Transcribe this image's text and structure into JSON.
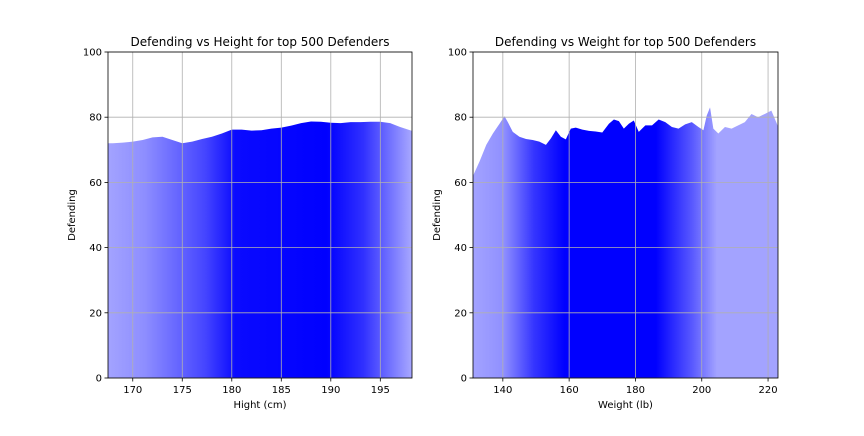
{
  "chart_data": [
    {
      "type": "area",
      "title": "Defending vs Height for top 500 Defenders",
      "xlabel": "Hight (cm)",
      "ylabel": "Defending",
      "xlim": [
        167.5,
        198.2
      ],
      "ylim": [
        0,
        100
      ],
      "xticks": [
        170,
        175,
        180,
        185,
        190,
        195
      ],
      "yticks": [
        0,
        20,
        40,
        60,
        80,
        100
      ],
      "grid": true,
      "fill_color": "#0000ff",
      "x": [
        167.5,
        168,
        169,
        170,
        171,
        172,
        173,
        174,
        175,
        176,
        177,
        178,
        179,
        180,
        181,
        182,
        183,
        184,
        185,
        186,
        187,
        188,
        189,
        190,
        191,
        192,
        193,
        194,
        195,
        196,
        197,
        198.2
      ],
      "y": [
        72.0,
        72.0,
        72.2,
        72.5,
        73.0,
        73.8,
        74.0,
        73.0,
        72.0,
        72.5,
        73.3,
        74.0,
        75.0,
        76.2,
        76.2,
        75.9,
        76.0,
        76.5,
        76.8,
        77.4,
        78.2,
        78.7,
        78.6,
        78.3,
        78.2,
        78.5,
        78.5,
        78.6,
        78.6,
        78.2,
        77.0,
        75.8
      ]
    },
    {
      "type": "area",
      "title": "Defending vs Weight for top 500 Defenders",
      "xlabel": "Weight (lb)",
      "ylabel": "Defending",
      "xlim": [
        131,
        223
      ],
      "ylim": [
        0,
        100
      ],
      "xticks": [
        140,
        160,
        180,
        200,
        220
      ],
      "yticks": [
        0,
        20,
        40,
        60,
        80,
        100
      ],
      "grid": true,
      "fill_color": "#0000ff",
      "x": [
        131,
        133,
        135,
        137,
        139,
        140.5,
        141.5,
        143,
        145,
        147,
        149,
        151,
        153,
        154.5,
        156,
        157.5,
        159,
        160.5,
        162,
        164,
        166,
        168,
        170,
        172,
        173.5,
        175,
        176.5,
        178,
        179.5,
        181,
        183,
        185,
        187,
        189,
        191,
        193,
        195,
        197,
        199,
        200.5,
        201.5,
        202.5,
        203.5,
        205,
        207,
        209,
        211,
        213,
        215,
        217,
        219,
        221,
        223
      ],
      "y": [
        62.0,
        66.5,
        71.5,
        75.0,
        78.0,
        80.3,
        78.5,
        75.5,
        74.0,
        73.3,
        73.0,
        72.5,
        71.5,
        73.5,
        76.0,
        74.0,
        73.2,
        76.5,
        76.8,
        76.2,
        75.8,
        75.6,
        75.3,
        78.0,
        79.3,
        78.8,
        76.5,
        78.0,
        79.0,
        75.5,
        77.5,
        77.5,
        79.3,
        78.5,
        77.0,
        76.5,
        77.8,
        78.5,
        77.0,
        76.0,
        80.5,
        83.0,
        76.5,
        75.0,
        77.0,
        76.5,
        77.5,
        78.5,
        81.0,
        80.0,
        81.0,
        82.0,
        77.2
      ]
    }
  ]
}
